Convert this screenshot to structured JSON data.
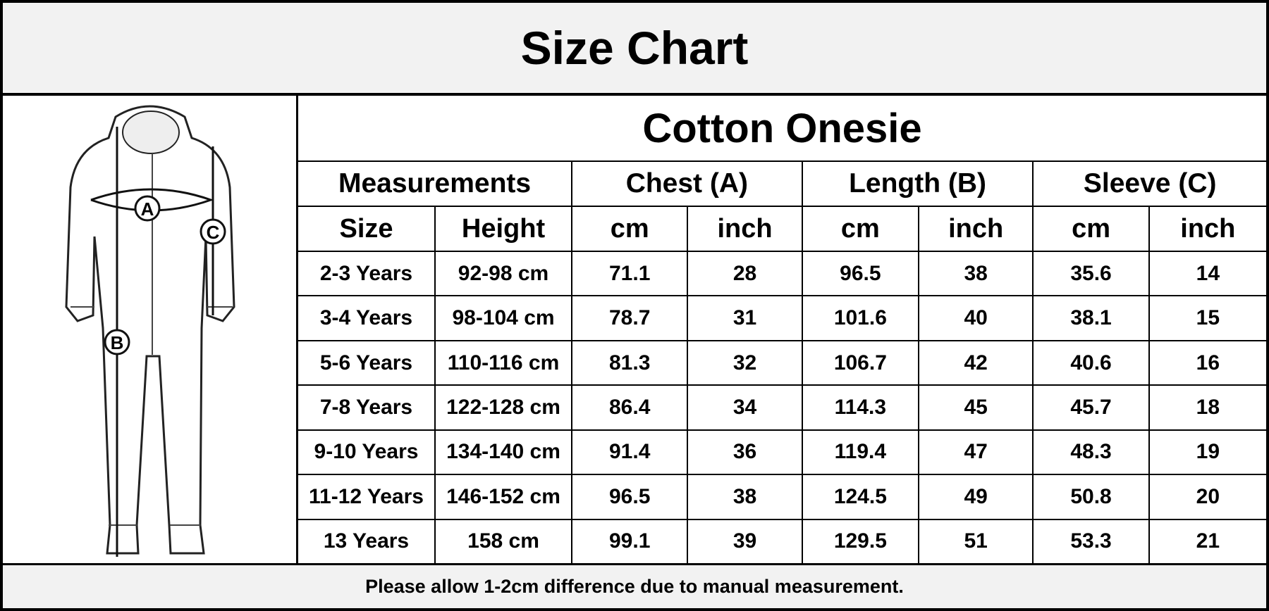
{
  "header": {
    "title": "Size Chart"
  },
  "illustration": {
    "labels": [
      "A",
      "B",
      "C"
    ]
  },
  "table": {
    "title": "Cotton Onesie",
    "groups": [
      "Measurements",
      "Chest (A)",
      "Length (B)",
      "Sleeve (C)"
    ],
    "columns": [
      "Size",
      "Height",
      "cm",
      "inch",
      "cm",
      "inch",
      "cm",
      "inch"
    ],
    "rows": [
      [
        "2-3 Years",
        "92-98 cm",
        71.1,
        28,
        96.5,
        38,
        35.6,
        14
      ],
      [
        "3-4 Years",
        "98-104 cm",
        78.7,
        31,
        101.6,
        40,
        38.1,
        15
      ],
      [
        "5-6 Years",
        "110-116 cm",
        81.3,
        32,
        106.7,
        42,
        40.6,
        16
      ],
      [
        "7-8 Years",
        "122-128 cm",
        86.4,
        34,
        114.3,
        45,
        45.7,
        18
      ],
      [
        "9-10 Years",
        "134-140 cm",
        91.4,
        36,
        119.4,
        47,
        48.3,
        19
      ],
      [
        "11-12 Years",
        "146-152 cm",
        96.5,
        38,
        124.5,
        49,
        50.8,
        20
      ],
      [
        "13 Years",
        "158 cm",
        99.1,
        39,
        129.5,
        51,
        53.3,
        21
      ]
    ]
  },
  "footer": {
    "note": "Please allow 1-2cm difference due to manual measurement."
  }
}
